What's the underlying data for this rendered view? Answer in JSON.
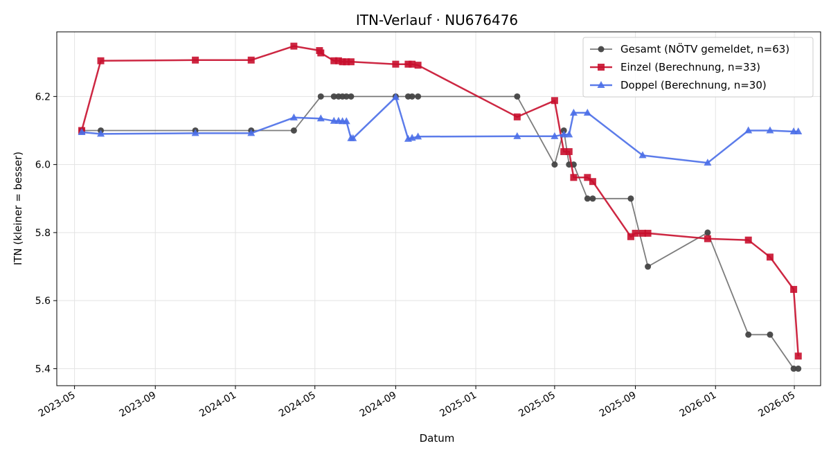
{
  "chart_data": {
    "type": "line",
    "title": "ITN-Verlauf · NU676476",
    "xlabel": "Datum",
    "ylabel": "ITN  (kleiner = besser)",
    "xlim": [
      "2023-04-04",
      "2026-06-10"
    ],
    "ylim": [
      5.35,
      6.39
    ],
    "x_ticks": [
      "2023-05-01",
      "2023-09-01",
      "2024-01-01",
      "2024-05-01",
      "2024-09-01",
      "2025-01-01",
      "2025-05-01",
      "2025-09-01",
      "2026-01-01",
      "2026-05-01"
    ],
    "x_tick_labels": [
      "2023-05",
      "2023-09",
      "2024-01",
      "2024-05",
      "2024-09",
      "2025-01",
      "2025-05",
      "2025-09",
      "2026-01",
      "2026-05"
    ],
    "y_ticks": [
      5.4,
      5.6,
      5.8,
      6.0,
      6.2
    ],
    "y_tick_labels": [
      "5.4",
      "5.6",
      "5.8",
      "6.0",
      "6.2"
    ],
    "grid": true,
    "legend_position": "top-right",
    "series": [
      {
        "name": "Gesamt (NÖTV gemeldet, n=63)",
        "color": "#444444",
        "marker": "circle",
        "points": [
          [
            "2023-05-12",
            6.1
          ],
          [
            "2023-06-10",
            6.1
          ],
          [
            "2023-11-01",
            6.1
          ],
          [
            "2024-01-25",
            6.1
          ],
          [
            "2024-03-30",
            6.1
          ],
          [
            "2024-05-10",
            6.2
          ],
          [
            "2024-05-30",
            6.2
          ],
          [
            "2024-06-06",
            6.2
          ],
          [
            "2024-06-12",
            6.2
          ],
          [
            "2024-06-18",
            6.2
          ],
          [
            "2024-06-25",
            6.2
          ],
          [
            "2024-09-01",
            6.2
          ],
          [
            "2024-09-20",
            6.2
          ],
          [
            "2024-09-26",
            6.2
          ],
          [
            "2024-10-05",
            6.2
          ],
          [
            "2025-03-05",
            6.2
          ],
          [
            "2025-05-01",
            6.0
          ],
          [
            "2025-05-15",
            6.1
          ],
          [
            "2025-05-23",
            6.0
          ],
          [
            "2025-05-30",
            6.0
          ],
          [
            "2025-06-20",
            5.9
          ],
          [
            "2025-06-28",
            5.9
          ],
          [
            "2025-08-25",
            5.9
          ],
          [
            "2025-09-20",
            5.7
          ],
          [
            "2025-12-20",
            5.8
          ],
          [
            "2026-02-20",
            5.5
          ],
          [
            "2026-03-25",
            5.5
          ],
          [
            "2026-04-30",
            5.4
          ],
          [
            "2026-05-07",
            5.4
          ]
        ]
      },
      {
        "name": "Einzel (Berechnung, n=33)",
        "color": "#c8102e",
        "marker": "square",
        "points": [
          [
            "2023-05-12",
            6.1
          ],
          [
            "2023-06-10",
            6.305
          ],
          [
            "2023-11-01",
            6.307
          ],
          [
            "2024-01-25",
            6.307
          ],
          [
            "2024-03-30",
            6.348
          ],
          [
            "2024-05-08",
            6.335
          ],
          [
            "2024-05-10",
            6.328
          ],
          [
            "2024-05-30",
            6.305
          ],
          [
            "2024-06-06",
            6.305
          ],
          [
            "2024-06-12",
            6.302
          ],
          [
            "2024-06-18",
            6.302
          ],
          [
            "2024-06-25",
            6.302
          ],
          [
            "2024-09-01",
            6.295
          ],
          [
            "2024-09-20",
            6.295
          ],
          [
            "2024-09-26",
            6.295
          ],
          [
            "2024-10-05",
            6.292
          ],
          [
            "2025-03-05",
            6.14
          ],
          [
            "2025-05-01",
            6.188
          ],
          [
            "2025-05-15",
            6.038
          ],
          [
            "2025-05-23",
            6.038
          ],
          [
            "2025-05-30",
            5.962
          ],
          [
            "2025-06-20",
            5.962
          ],
          [
            "2025-06-28",
            5.95
          ],
          [
            "2025-08-25",
            5.788
          ],
          [
            "2025-09-01",
            5.798
          ],
          [
            "2025-09-12",
            5.798
          ],
          [
            "2025-09-20",
            5.798
          ],
          [
            "2025-12-20",
            5.782
          ],
          [
            "2026-02-20",
            5.778
          ],
          [
            "2026-03-25",
            5.728
          ],
          [
            "2026-04-30",
            5.633
          ],
          [
            "2026-05-07",
            5.437
          ]
        ]
      },
      {
        "name": "Doppel (Berechnung, n=30)",
        "color": "#4a6ee8",
        "marker": "triangle",
        "points": [
          [
            "2023-05-12",
            6.095
          ],
          [
            "2023-06-10",
            6.09
          ],
          [
            "2023-11-01",
            6.092
          ],
          [
            "2024-01-25",
            6.092
          ],
          [
            "2024-03-30",
            6.138
          ],
          [
            "2024-05-10",
            6.135
          ],
          [
            "2024-05-30",
            6.128
          ],
          [
            "2024-06-06",
            6.128
          ],
          [
            "2024-06-12",
            6.127
          ],
          [
            "2024-06-18",
            6.127
          ],
          [
            "2024-06-25",
            6.077
          ],
          [
            "2024-06-28",
            6.077
          ],
          [
            "2024-09-01",
            6.198
          ],
          [
            "2024-09-20",
            6.075
          ],
          [
            "2024-09-26",
            6.078
          ],
          [
            "2024-10-05",
            6.082
          ],
          [
            "2025-03-05",
            6.083
          ],
          [
            "2025-05-01",
            6.083
          ],
          [
            "2025-05-15",
            6.088
          ],
          [
            "2025-05-23",
            6.088
          ],
          [
            "2025-05-30",
            6.152
          ],
          [
            "2025-06-20",
            6.152
          ],
          [
            "2025-09-12",
            6.027
          ],
          [
            "2025-12-20",
            6.005
          ],
          [
            "2026-02-20",
            6.1
          ],
          [
            "2026-03-25",
            6.1
          ],
          [
            "2026-04-30",
            6.097
          ],
          [
            "2026-05-07",
            6.097
          ]
        ]
      }
    ]
  }
}
